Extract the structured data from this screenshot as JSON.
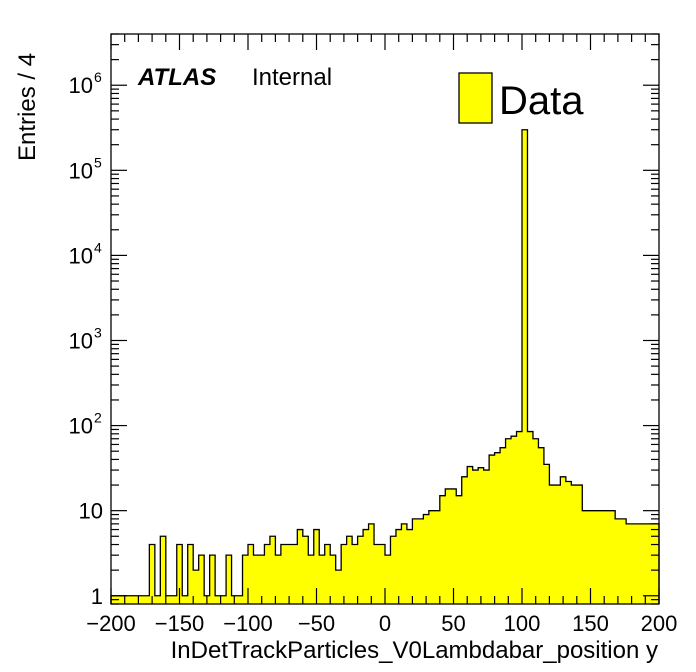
{
  "chart_data": {
    "type": "bar",
    "xlabel": "InDetTrackParticles_V0Lambdabar_position y",
    "ylabel": "Entries / 4",
    "xlim": [
      -200,
      200
    ],
    "ylim": [
      0.8,
      4000000
    ],
    "log_y": true,
    "bin_width": 4,
    "x_ticks": [
      "−200",
      "−150",
      "−100",
      "−50",
      "0",
      "50",
      "100",
      "150",
      "200"
    ],
    "y_ticks": [
      {
        "base": "1",
        "exp": ""
      },
      {
        "base": "10",
        "exp": ""
      },
      {
        "base": "10",
        "exp": "2"
      },
      {
        "base": "10",
        "exp": "3"
      },
      {
        "base": "10",
        "exp": "4"
      },
      {
        "base": "10",
        "exp": "5"
      },
      {
        "base": "10",
        "exp": "6"
      }
    ],
    "label_main": "ATLAS",
    "label_sub": "Internal",
    "legend": [
      {
        "label": "Data",
        "color": "#ffff00"
      }
    ],
    "colors": {
      "fill": "#ffff00",
      "line": "#000000"
    },
    "series": [
      {
        "name": "Data",
        "x_low": [
          -200,
          -196,
          -192,
          -188,
          -184,
          -180,
          -176,
          -172,
          -168,
          -164,
          -160,
          -156,
          -152,
          -148,
          -144,
          -140,
          -136,
          -132,
          -128,
          -124,
          -120,
          -116,
          -112,
          -108,
          -104,
          -100,
          -96,
          -92,
          -88,
          -84,
          -80,
          -76,
          -72,
          -68,
          -64,
          -60,
          -56,
          -52,
          -48,
          -44,
          -40,
          -36,
          -32,
          -28,
          -24,
          -20,
          -16,
          -12,
          -8,
          -4,
          0,
          4,
          8,
          12,
          16,
          20,
          24,
          28,
          32,
          36,
          40,
          44,
          48,
          52,
          56,
          60,
          64,
          68,
          72,
          76,
          80,
          84,
          88,
          92,
          96,
          100,
          104,
          108,
          112,
          116,
          120,
          124,
          128,
          132,
          136,
          140,
          144,
          148,
          152,
          156,
          160,
          164,
          168,
          172,
          176,
          180,
          184,
          188,
          192,
          196
        ],
        "values": [
          1,
          1,
          1,
          1,
          1,
          1,
          1,
          4,
          1,
          5,
          1,
          1,
          4,
          1,
          4,
          2,
          3,
          1,
          3,
          1,
          1,
          3,
          1,
          1,
          3,
          4,
          3,
          3,
          4,
          5,
          3,
          4,
          4,
          4,
          6,
          5,
          3,
          6,
          3,
          4,
          3,
          2,
          4,
          5,
          4,
          5,
          6,
          7,
          4,
          4,
          3,
          5,
          6,
          7,
          6,
          8,
          8,
          9,
          10,
          10,
          15,
          18,
          18,
          15,
          25,
          33,
          30,
          32,
          30,
          45,
          48,
          55,
          70,
          75,
          85,
          300000,
          85,
          70,
          55,
          35,
          20,
          20,
          25,
          22,
          20,
          20,
          10,
          10,
          10,
          10,
          10,
          10,
          8,
          8,
          7,
          7,
          7,
          7,
          7,
          7
        ]
      }
    ]
  }
}
